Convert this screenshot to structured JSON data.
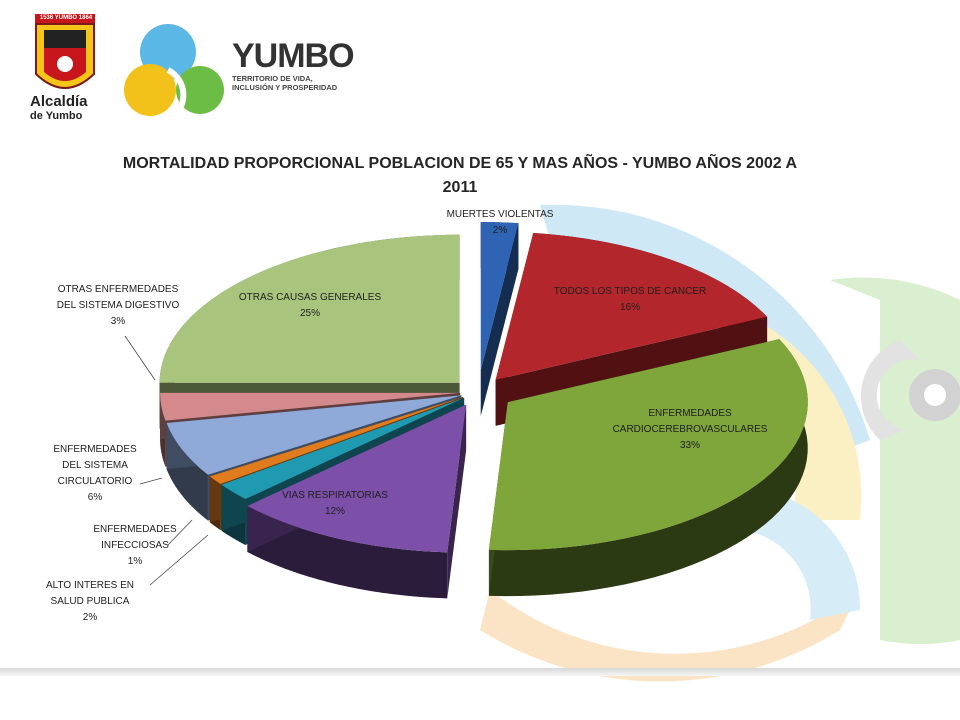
{
  "header": {
    "alcaldia_banner": "1536 YUMBO 1864",
    "alcaldia_name_1": "Alcaldía",
    "alcaldia_name_2": "de Yumbo",
    "yumbo_brand": "YUMBO",
    "yumbo_tagline_1": "TERRITORIO DE VIDA,",
    "yumbo_tagline_2": "INCLUSIÓN Y PROSPERIDAD"
  },
  "chart_data": {
    "type": "pie",
    "style": "3d-exploded",
    "title_line1": "MORTALIDAD PROPORCIONAL POBLACION DE 65 Y MAS AÑOS - YUMBO AÑOS 2002 A",
    "title_line2": "2011",
    "slices": [
      {
        "label": "MUERTES  VIOLENTAS",
        "value": 2,
        "pct_text": "2%",
        "color": "#2f64b4"
      },
      {
        "label": "TODOS LOS TIPOS DE CANCER",
        "value": 16,
        "pct_text": "16%",
        "color": "#b3262b"
      },
      {
        "label": "ENFERMEDADES CARDIOCEREBROVASCULARES",
        "value": 33,
        "pct_text": "33%",
        "color": "#7ea63a"
      },
      {
        "label": "VIAS RESPIRATORIAS",
        "value": 12,
        "pct_text": "12%",
        "color": "#7c4fa8"
      },
      {
        "label": "ALTO INTERES  EN SALUD PUBLICA",
        "value": 2,
        "pct_text": "2%",
        "color": "#1f9ab0"
      },
      {
        "label": "ENFERMEDADES INFECCIOSAS",
        "value": 1,
        "pct_text": "1%",
        "color": "#e07c1e"
      },
      {
        "label": "ENFERMEDADES DEL SISTEMA CIRCULATORIO",
        "value": 6,
        "pct_text": "6%",
        "color": "#8fa9d9"
      },
      {
        "label": "OTRAS ENFERMEDADES DEL SISTEMA  DIGESTIVO",
        "value": 3,
        "pct_text": "3%",
        "color": "#d48a8c"
      },
      {
        "label": "OTRAS CAUSAS GENERALES",
        "value": 25,
        "pct_text": "25%",
        "color": "#a9c57d"
      }
    ]
  },
  "labels": {
    "violentas_1": "MUERTES  VIOLENTAS",
    "violentas_2": "2%",
    "cancer_1": "TODOS LOS TIPOS DE CANCER",
    "cancer_2": "16%",
    "cardio_1": "ENFERMEDADES",
    "cardio_2": "CARDIOCEREBROVASCULARES",
    "cardio_3": "33%",
    "resp_1": "VIAS RESPIRATORIAS",
    "resp_2": "12%",
    "alto_1": "ALTO INTERES  EN",
    "alto_2": "SALUD PUBLICA",
    "alto_3": "2%",
    "infec_1": "ENFERMEDADES",
    "infec_2": "INFECCIOSAS",
    "infec_3": "1%",
    "circ_1": "ENFERMEDADES",
    "circ_2": "DEL SISTEMA",
    "circ_3": "CIRCULATORIO",
    "circ_4": "6%",
    "dig_1": "OTRAS ENFERMEDADES",
    "dig_2": "DEL SISTEMA  DIGESTIVO",
    "dig_3": "3%",
    "otras_1": "OTRAS CAUSAS GENERALES",
    "otras_2": "25%"
  }
}
